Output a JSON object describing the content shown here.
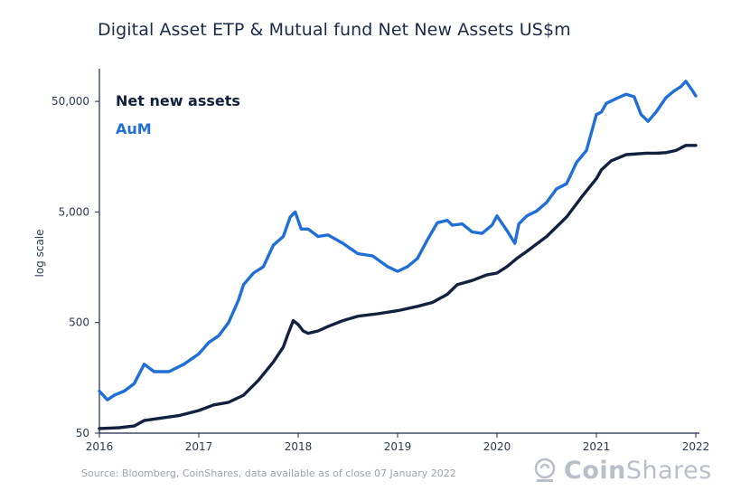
{
  "chart_data": {
    "type": "line",
    "title": "Digital Asset ETP & Mutual fund Net New Assets US$m",
    "ylabel": "log scale",
    "xlabel": "",
    "yscale": "log",
    "ylim": [
      50,
      100000
    ],
    "yticks": [
      {
        "value": 50,
        "label": "50"
      },
      {
        "value": 500,
        "label": "500"
      },
      {
        "value": 5000,
        "label": "5,000"
      },
      {
        "value": 50000,
        "label": "50,000"
      }
    ],
    "xlim": [
      2016,
      2022
    ],
    "xticks": [
      {
        "value": 2016,
        "label": "2016"
      },
      {
        "value": 2017,
        "label": "2017"
      },
      {
        "value": 2018,
        "label": "2018"
      },
      {
        "value": 2019,
        "label": "2019"
      },
      {
        "value": 2020,
        "label": "2020"
      },
      {
        "value": 2021,
        "label": "2021"
      },
      {
        "value": 2022,
        "label": "2022"
      }
    ],
    "grid": false,
    "legend_position": "top-left",
    "series": [
      {
        "name": "Net new assets",
        "color": "#12213f",
        "x": [
          2016.0,
          2016.2,
          2016.35,
          2016.45,
          2016.6,
          2016.8,
          2017.0,
          2017.15,
          2017.3,
          2017.45,
          2017.6,
          2017.75,
          2017.85,
          2017.9,
          2017.95,
          2018.0,
          2018.05,
          2018.1,
          2018.2,
          2018.3,
          2018.45,
          2018.6,
          2018.8,
          2019.0,
          2019.2,
          2019.35,
          2019.5,
          2019.6,
          2019.75,
          2019.9,
          2020.0,
          2020.1,
          2020.2,
          2020.3,
          2020.5,
          2020.7,
          2020.85,
          2021.0,
          2021.05,
          2021.15,
          2021.3,
          2021.5,
          2021.6,
          2021.7,
          2021.8,
          2021.9,
          2022.0
        ],
        "y": [
          55,
          56,
          58,
          65,
          68,
          72,
          80,
          90,
          95,
          110,
          150,
          220,
          300,
          400,
          520,
          480,
          420,
          400,
          420,
          460,
          520,
          570,
          600,
          640,
          700,
          760,
          900,
          1100,
          1200,
          1350,
          1400,
          1600,
          1900,
          2200,
          3000,
          4500,
          6800,
          10000,
          12000,
          14500,
          16500,
          17000,
          17000,
          17200,
          18000,
          20000,
          20000
        ]
      },
      {
        "name": "AuM",
        "color": "#1f6fd6",
        "x": [
          2016.0,
          2016.08,
          2016.15,
          2016.25,
          2016.35,
          2016.45,
          2016.55,
          2016.7,
          2016.85,
          2017.0,
          2017.1,
          2017.2,
          2017.3,
          2017.4,
          2017.45,
          2017.55,
          2017.65,
          2017.75,
          2017.85,
          2017.92,
          2017.97,
          2018.03,
          2018.1,
          2018.2,
          2018.3,
          2018.45,
          2018.6,
          2018.75,
          2018.9,
          2019.0,
          2019.1,
          2019.2,
          2019.3,
          2019.4,
          2019.5,
          2019.55,
          2019.65,
          2019.75,
          2019.85,
          2019.95,
          2020.0,
          2020.1,
          2020.18,
          2020.22,
          2020.3,
          2020.4,
          2020.5,
          2020.6,
          2020.7,
          2020.8,
          2020.9,
          2021.0,
          2021.05,
          2021.1,
          2021.2,
          2021.3,
          2021.38,
          2021.45,
          2021.52,
          2021.6,
          2021.7,
          2021.78,
          2021.85,
          2021.9,
          2021.97,
          2022.0
        ],
        "y": [
          120,
          100,
          110,
          120,
          140,
          210,
          180,
          180,
          210,
          260,
          330,
          380,
          500,
          800,
          1100,
          1400,
          1600,
          2500,
          3000,
          4500,
          5000,
          3500,
          3500,
          3000,
          3100,
          2600,
          2100,
          2000,
          1600,
          1450,
          1600,
          1900,
          2800,
          4000,
          4200,
          3800,
          3900,
          3300,
          3200,
          3800,
          4600,
          3400,
          2600,
          3900,
          4600,
          5100,
          6100,
          8100,
          9000,
          14000,
          18000,
          38000,
          40000,
          48000,
          53000,
          58000,
          55000,
          38000,
          33000,
          40000,
          54000,
          62000,
          68000,
          76000,
          62000,
          56000
        ]
      }
    ]
  },
  "source": "Source: Bloomberg, CoinShares, data available as of close 07 January 2022",
  "brand": {
    "prefix": "Coin",
    "suffix": "Shares"
  }
}
